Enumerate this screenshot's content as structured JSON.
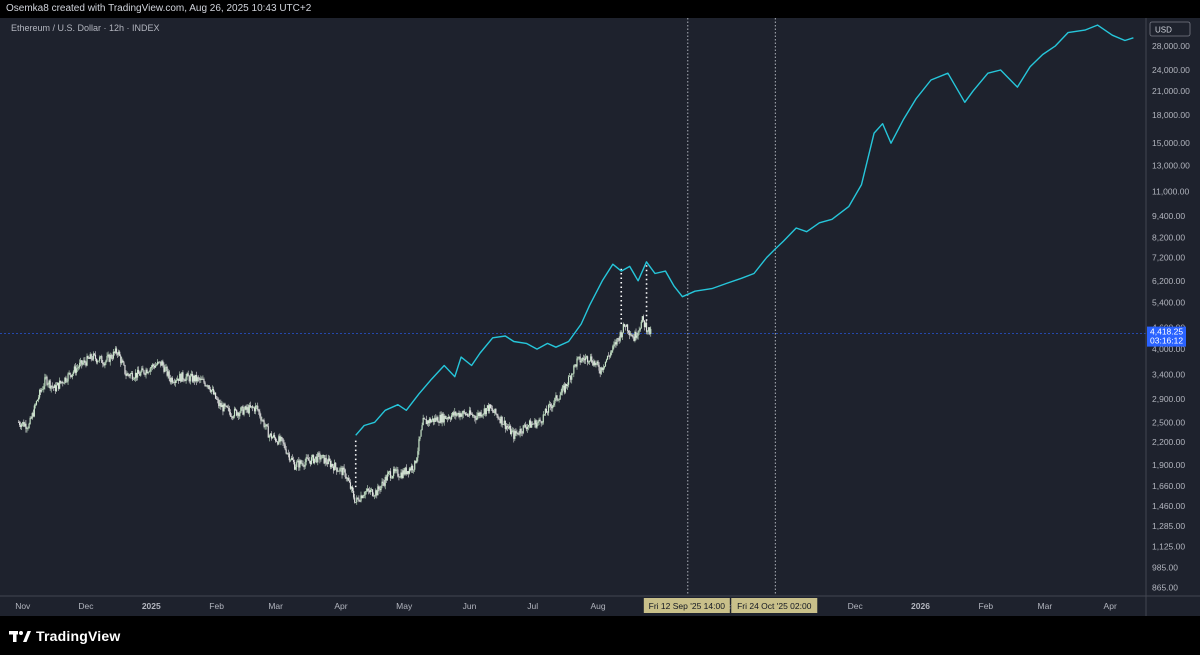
{
  "header": {
    "credit": "Osemka8 created with TradingView.com, Aug 26, 2025 10:43 UTC+2"
  },
  "legend": {
    "symbol": "Ethereum / U.S. Dollar · 12h · INDEX"
  },
  "footer": {
    "brand": "TradingView"
  },
  "colors": {
    "background": "#1e222d",
    "projection_line": "#26c6da",
    "candle_up": "#c8e6c9",
    "candle_down": "#e0e0e0",
    "price_label": "#2962ff",
    "date_label_bg": "#c9c08a"
  },
  "chart_data": {
    "type": "line",
    "currency": "USD",
    "scale": "log",
    "y_ticks": [
      "28,000.00",
      "24,000.00",
      "21,000.00",
      "18,000.00",
      "15,000.00",
      "13,000.00",
      "11,000.00",
      "9,400.00",
      "8,200.00",
      "7,200.00",
      "6,200.00",
      "5,400.00",
      "4,600.00",
      "4,000.00",
      "3,400.00",
      "2,900.00",
      "2,500.00",
      "2,200.00",
      "1,900.00",
      "1,660.00",
      "1,460.00",
      "1,285.00",
      "1,125.00",
      "985.00",
      "865.00"
    ],
    "y_tick_values": [
      28000,
      24000,
      21000,
      18000,
      15000,
      13000,
      11000,
      9400,
      8200,
      7200,
      6200,
      5400,
      4600,
      4000,
      3400,
      2900,
      2500,
      2200,
      1900,
      1660,
      1460,
      1285,
      1125,
      985,
      865
    ],
    "x_ticks": [
      "Nov",
      "Dec",
      "2025",
      "Feb",
      "Mar",
      "Apr",
      "May",
      "Jun",
      "Jul",
      "Aug",
      "Sep",
      "Oct",
      "Nov",
      "Dec",
      "2026",
      "Feb",
      "Mar",
      "Apr"
    ],
    "last_price": {
      "value": "4,418.25",
      "countdown": "03:16:12",
      "value_num": 4418.25
    },
    "vertical_markers": [
      {
        "label": "Fri 12 Sep '25   14:00",
        "date": "2025-09-12T14:00"
      },
      {
        "label": "Fri 24 Oct '25   02:00",
        "date": "2025-10-24T02:00"
      }
    ],
    "series": [
      {
        "style": "line",
        "points": [
          [
            "2025-04-08",
            2300
          ],
          [
            "2025-04-12",
            2450
          ],
          [
            "2025-04-17",
            2500
          ],
          [
            "2025-04-22",
            2700
          ],
          [
            "2025-04-28",
            2800
          ],
          [
            "2025-05-02",
            2700
          ],
          [
            "2025-05-08",
            3000
          ],
          [
            "2025-05-14",
            3300
          ],
          [
            "2025-05-20",
            3600
          ],
          [
            "2025-05-25",
            3350
          ],
          [
            "2025-05-28",
            3800
          ],
          [
            "2025-06-02",
            3600
          ],
          [
            "2025-06-06",
            3900
          ],
          [
            "2025-06-12",
            4300
          ],
          [
            "2025-06-18",
            4350
          ],
          [
            "2025-06-22",
            4200
          ],
          [
            "2025-06-28",
            4150
          ],
          [
            "2025-07-03",
            4000
          ],
          [
            "2025-07-08",
            4150
          ],
          [
            "2025-07-12",
            4050
          ],
          [
            "2025-07-18",
            4200
          ],
          [
            "2025-07-24",
            4700
          ],
          [
            "2025-07-28",
            5300
          ],
          [
            "2025-08-03",
            6200
          ],
          [
            "2025-08-08",
            6900
          ],
          [
            "2025-08-12",
            6600
          ],
          [
            "2025-08-16",
            6800
          ],
          [
            "2025-08-20",
            6200
          ],
          [
            "2025-08-24",
            7000
          ],
          [
            "2025-08-28",
            6500
          ],
          [
            "2025-09-02",
            6600
          ],
          [
            "2025-09-06",
            6000
          ],
          [
            "2025-09-10",
            5600
          ],
          [
            "2025-09-16",
            5800
          ],
          [
            "2025-09-24",
            5900
          ],
          [
            "2025-10-01",
            6100
          ],
          [
            "2025-10-08",
            6300
          ],
          [
            "2025-10-14",
            6500
          ],
          [
            "2025-10-20",
            7200
          ],
          [
            "2025-10-24",
            7600
          ],
          [
            "2025-10-28",
            8000
          ],
          [
            "2025-11-03",
            8700
          ],
          [
            "2025-11-08",
            8500
          ],
          [
            "2025-11-14",
            9000
          ],
          [
            "2025-11-20",
            9200
          ],
          [
            "2025-11-28",
            10000
          ],
          [
            "2025-12-04",
            11500
          ],
          [
            "2025-12-10",
            16000
          ],
          [
            "2025-12-14",
            17000
          ],
          [
            "2025-12-18",
            15000
          ],
          [
            "2025-12-24",
            17500
          ],
          [
            "2025-12-30",
            20000
          ],
          [
            "2026-01-06",
            22500
          ],
          [
            "2026-01-14",
            23500
          ],
          [
            "2026-01-22",
            19500
          ],
          [
            "2026-01-26",
            21000
          ],
          [
            "2026-02-02",
            23500
          ],
          [
            "2026-02-08",
            24000
          ],
          [
            "2026-02-16",
            21500
          ],
          [
            "2026-02-22",
            24500
          ],
          [
            "2026-02-28",
            26500
          ],
          [
            "2026-03-06",
            28000
          ],
          [
            "2026-03-12",
            30500
          ],
          [
            "2026-03-20",
            31000
          ],
          [
            "2026-03-26",
            32000
          ],
          [
            "2026-04-02",
            30000
          ],
          [
            "2026-04-08",
            29000
          ],
          [
            "2026-04-12",
            29500
          ]
        ]
      },
      {
        "style": "candles",
        "points": [
          [
            "2024-10-30",
            2500
          ],
          [
            "2024-11-04",
            2450
          ],
          [
            "2024-11-08",
            2900
          ],
          [
            "2024-11-12",
            3300
          ],
          [
            "2024-11-16",
            3100
          ],
          [
            "2024-11-22",
            3350
          ],
          [
            "2024-11-28",
            3600
          ],
          [
            "2024-12-04",
            3800
          ],
          [
            "2024-12-10",
            3700
          ],
          [
            "2024-12-16",
            3950
          ],
          [
            "2024-12-20",
            3400
          ],
          [
            "2024-12-26",
            3400
          ],
          [
            "2025-01-02",
            3600
          ],
          [
            "2025-01-06",
            3650
          ],
          [
            "2025-01-10",
            3300
          ],
          [
            "2025-01-16",
            3350
          ],
          [
            "2025-01-22",
            3300
          ],
          [
            "2025-01-28",
            3200
          ],
          [
            "2025-02-02",
            2800
          ],
          [
            "2025-02-08",
            2650
          ],
          [
            "2025-02-14",
            2700
          ],
          [
            "2025-02-20",
            2750
          ],
          [
            "2025-02-26",
            2300
          ],
          [
            "2025-03-04",
            2200
          ],
          [
            "2025-03-10",
            1900
          ],
          [
            "2025-03-16",
            1950
          ],
          [
            "2025-03-22",
            2000
          ],
          [
            "2025-03-28",
            1900
          ],
          [
            "2025-04-03",
            1800
          ],
          [
            "2025-04-08",
            1500
          ],
          [
            "2025-04-12",
            1600
          ],
          [
            "2025-04-18",
            1600
          ],
          [
            "2025-04-24",
            1800
          ],
          [
            "2025-04-30",
            1800
          ],
          [
            "2025-05-06",
            1900
          ],
          [
            "2025-05-10",
            2500
          ],
          [
            "2025-05-16",
            2550
          ],
          [
            "2025-05-22",
            2600
          ],
          [
            "2025-05-28",
            2650
          ],
          [
            "2025-06-04",
            2600
          ],
          [
            "2025-06-10",
            2750
          ],
          [
            "2025-06-16",
            2550
          ],
          [
            "2025-06-22",
            2300
          ],
          [
            "2025-06-28",
            2450
          ],
          [
            "2025-07-04",
            2500
          ],
          [
            "2025-07-10",
            2800
          ],
          [
            "2025-07-16",
            3100
          ],
          [
            "2025-07-22",
            3700
          ],
          [
            "2025-07-28",
            3800
          ],
          [
            "2025-08-02",
            3500
          ],
          [
            "2025-08-08",
            4000
          ],
          [
            "2025-08-14",
            4700
          ],
          [
            "2025-08-18",
            4300
          ],
          [
            "2025-08-22",
            4800
          ],
          [
            "2025-08-26",
            4418.25
          ]
        ]
      }
    ]
  }
}
